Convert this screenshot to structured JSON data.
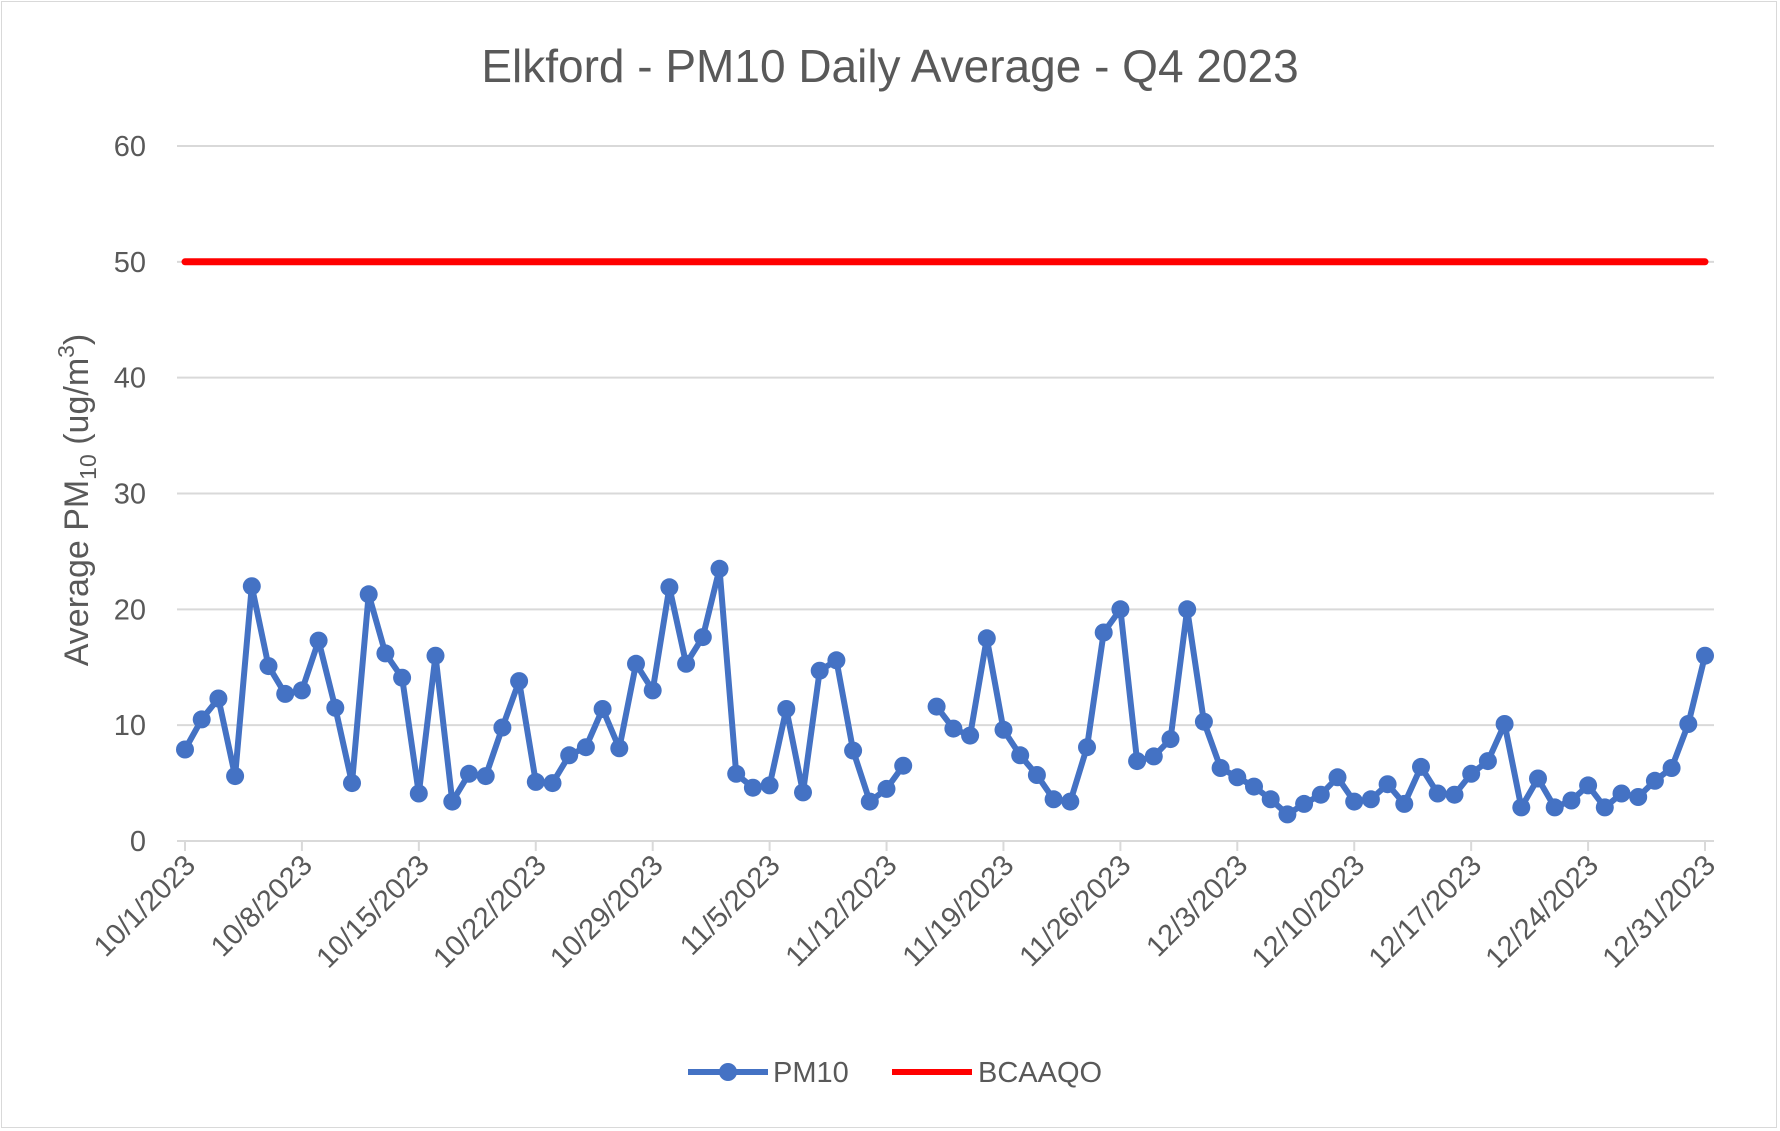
{
  "chart_data": {
    "type": "line",
    "title": "Elkford - PM10 Daily Average - Q4 2023",
    "ylabel": {
      "prefix": "Average PM",
      "subscript": "10",
      "suffix": " (ug/m",
      "superscript": "3",
      "close": ")"
    },
    "xlabel": "",
    "ylim": [
      0,
      60
    ],
    "yticks": [
      0,
      10,
      20,
      30,
      40,
      50,
      60
    ],
    "xlim": [
      "2023-10-01",
      "2023-12-31"
    ],
    "xtick_labels": [
      "10/1/2023",
      "10/8/2023",
      "10/15/2023",
      "10/22/2023",
      "10/29/2023",
      "11/5/2023",
      "11/12/2023",
      "11/19/2023",
      "11/26/2023",
      "12/3/2023",
      "12/10/2023",
      "12/17/2023",
      "12/24/2023",
      "12/31/2023"
    ],
    "grid": true,
    "legend_position": "bottom",
    "series": [
      {
        "name": "PM10",
        "color": "#4472c4",
        "marker": "circle",
        "values": [
          [
            "2023-10-01",
            7.9
          ],
          [
            "2023-10-02",
            10.5
          ],
          [
            "2023-10-03",
            12.3
          ],
          [
            "2023-10-04",
            5.6
          ],
          [
            "2023-10-05",
            22.0
          ],
          [
            "2023-10-06",
            15.1
          ],
          [
            "2023-10-07",
            12.7
          ],
          [
            "2023-10-08",
            13.0
          ],
          [
            "2023-10-09",
            17.3
          ],
          [
            "2023-10-10",
            11.5
          ],
          [
            "2023-10-11",
            5.0
          ],
          [
            "2023-10-12",
            21.3
          ],
          [
            "2023-10-13",
            16.2
          ],
          [
            "2023-10-14",
            14.1
          ],
          [
            "2023-10-15",
            4.1
          ],
          [
            "2023-10-16",
            16.0
          ],
          [
            "2023-10-17",
            3.4
          ],
          [
            "2023-10-18",
            5.8
          ],
          [
            "2023-10-19",
            5.6
          ],
          [
            "2023-10-20",
            9.8
          ],
          [
            "2023-10-21",
            13.8
          ],
          [
            "2023-10-22",
            5.1
          ],
          [
            "2023-10-23",
            5.0
          ],
          [
            "2023-10-24",
            7.4
          ],
          [
            "2023-10-25",
            8.1
          ],
          [
            "2023-10-26",
            11.4
          ],
          [
            "2023-10-27",
            8.0
          ],
          [
            "2023-10-28",
            15.3
          ],
          [
            "2023-10-29",
            13.0
          ],
          [
            "2023-10-30",
            21.9
          ],
          [
            "2023-10-31",
            15.3
          ],
          [
            "2023-11-01",
            17.6
          ],
          [
            "2023-11-02",
            23.5
          ],
          [
            "2023-11-03",
            5.8
          ],
          [
            "2023-11-04",
            4.6
          ],
          [
            "2023-11-05",
            4.8
          ],
          [
            "2023-11-06",
            11.4
          ],
          [
            "2023-11-07",
            4.2
          ],
          [
            "2023-11-08",
            14.7
          ],
          [
            "2023-11-09",
            15.6
          ],
          [
            "2023-11-10",
            7.8
          ],
          [
            "2023-11-11",
            3.4
          ],
          [
            "2023-11-12",
            4.5
          ],
          [
            "2023-11-13",
            6.5
          ],
          [
            "2023-11-14",
            null
          ],
          [
            "2023-11-15",
            11.6
          ],
          [
            "2023-11-16",
            9.7
          ],
          [
            "2023-11-17",
            9.1
          ],
          [
            "2023-11-18",
            17.5
          ],
          [
            "2023-11-19",
            9.6
          ],
          [
            "2023-11-20",
            7.4
          ],
          [
            "2023-11-21",
            5.7
          ],
          [
            "2023-11-22",
            3.6
          ],
          [
            "2023-11-23",
            3.4
          ],
          [
            "2023-11-24",
            8.1
          ],
          [
            "2023-11-25",
            18.0
          ],
          [
            "2023-11-26",
            20.0
          ],
          [
            "2023-11-27",
            6.9
          ],
          [
            "2023-11-28",
            7.3
          ],
          [
            "2023-11-29",
            8.8
          ],
          [
            "2023-11-30",
            20.0
          ],
          [
            "2023-12-01",
            10.3
          ],
          [
            "2023-12-02",
            6.3
          ],
          [
            "2023-12-03",
            5.5
          ],
          [
            "2023-12-04",
            4.7
          ],
          [
            "2023-12-05",
            3.6
          ],
          [
            "2023-12-06",
            2.3
          ],
          [
            "2023-12-07",
            3.2
          ],
          [
            "2023-12-08",
            4.0
          ],
          [
            "2023-12-09",
            5.5
          ],
          [
            "2023-12-10",
            3.4
          ],
          [
            "2023-12-11",
            3.6
          ],
          [
            "2023-12-12",
            4.9
          ],
          [
            "2023-12-13",
            3.2
          ],
          [
            "2023-12-14",
            6.4
          ],
          [
            "2023-12-15",
            4.1
          ],
          [
            "2023-12-16",
            4.0
          ],
          [
            "2023-12-17",
            5.8
          ],
          [
            "2023-12-18",
            6.9
          ],
          [
            "2023-12-19",
            10.1
          ],
          [
            "2023-12-20",
            2.9
          ],
          [
            "2023-12-21",
            5.4
          ],
          [
            "2023-12-22",
            2.9
          ],
          [
            "2023-12-23",
            3.5
          ],
          [
            "2023-12-24",
            4.8
          ],
          [
            "2023-12-25",
            2.9
          ],
          [
            "2023-12-26",
            4.1
          ],
          [
            "2023-12-27",
            3.8
          ],
          [
            "2023-12-28",
            5.2
          ],
          [
            "2023-12-29",
            6.3
          ],
          [
            "2023-12-30",
            10.1
          ],
          [
            "2023-12-31",
            16.0
          ]
        ]
      },
      {
        "name": "BCAAQO",
        "color": "#ff0000",
        "marker": "none",
        "values": [
          [
            "2023-10-01",
            50
          ],
          [
            "2023-12-31",
            50
          ]
        ]
      }
    ]
  }
}
